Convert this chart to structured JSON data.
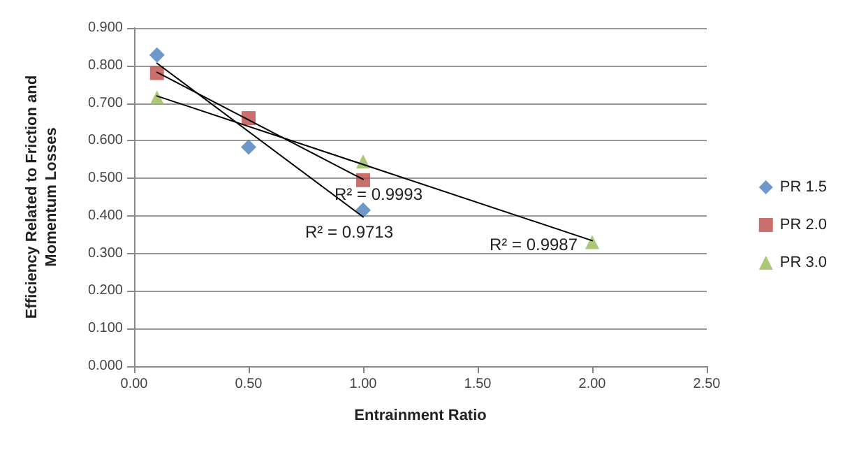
{
  "chart_data": {
    "type": "scatter",
    "xlabel": "Entrainment Ratio",
    "ylabel": "Efficiency Related to Friction and Momentum Losses",
    "series": [
      {
        "name": "PR 1.5",
        "color": "#4a7ebb",
        "marker": "diamond",
        "x": [
          0.1,
          0.5,
          1.0
        ],
        "values": [
          0.828,
          0.583,
          0.415
        ]
      },
      {
        "name": "PR 2.0",
        "color": "#be4b48",
        "marker": "square",
        "x": [
          0.1,
          0.5,
          1.0
        ],
        "values": [
          0.78,
          0.66,
          0.495
        ]
      },
      {
        "name": "PR 3.0",
        "color": "#98b954",
        "marker": "triangle",
        "x": [
          0.1,
          1.0,
          2.0
        ],
        "values": [
          0.715,
          0.545,
          0.33
        ]
      },
      {
        "type": "line",
        "color": "#000000",
        "marker": "none",
        "x": [
          0.1,
          1.0
        ],
        "values": [
          0.806,
          0.397
        ]
      },
      {
        "type": "line",
        "color": "#000000",
        "marker": "none",
        "x": [
          0.1,
          1.0
        ],
        "values": [
          0.782,
          0.497
        ]
      },
      {
        "type": "line",
        "color": "#000000",
        "marker": "none",
        "x": [
          0.1,
          2.0
        ],
        "values": [
          0.719,
          0.334
        ]
      }
    ],
    "annotations": [
      "R² = 0.9993",
      "R² = 0.9713",
      "R² = 0.9987"
    ],
    "xlim": [
      0,
      2.5
    ],
    "xticks": [
      {
        "value": 0,
        "label": "0.00"
      },
      {
        "value": 0.5,
        "label": "0.50"
      },
      {
        "value": 1,
        "label": "1.00"
      },
      {
        "value": 1.5,
        "label": "1.50"
      },
      {
        "value": 2,
        "label": "2.00"
      },
      {
        "value": 2.5,
        "label": "2.50"
      }
    ],
    "ylim": [
      0,
      0.9
    ],
    "yticks": [
      {
        "value": 0,
        "label": "0.000"
      },
      {
        "value": 0.1,
        "label": "0.100"
      },
      {
        "value": 0.2,
        "label": "0.200"
      },
      {
        "value": 0.3,
        "label": "0.300"
      },
      {
        "value": 0.4,
        "label": "0.400"
      },
      {
        "value": 0.5,
        "label": "0.500"
      },
      {
        "value": 0.6,
        "label": "0.600"
      },
      {
        "value": 0.7,
        "label": "0.700"
      },
      {
        "value": 0.8,
        "label": "0.800"
      },
      {
        "value": 0.9,
        "label": "0.900"
      }
    ],
    "grid": "y",
    "legend": "right"
  }
}
